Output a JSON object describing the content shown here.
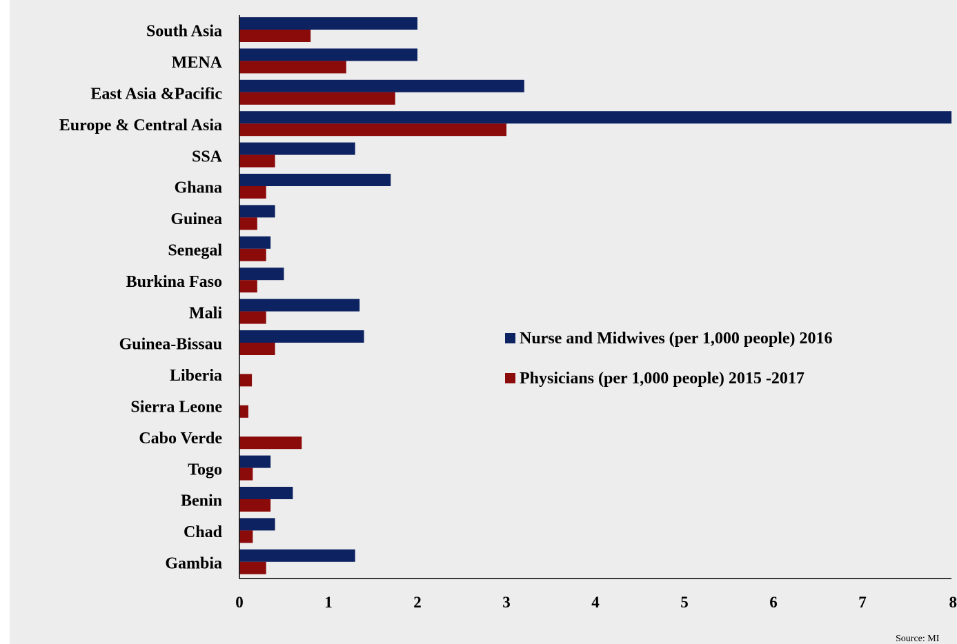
{
  "chart_data": {
    "type": "bar",
    "orientation": "horizontal",
    "categories": [
      "South Asia",
      "MENA",
      "East Asia &Pacific",
      "Europe & Central Asia",
      "SSA",
      "Ghana",
      "Guinea",
      "Senegal",
      "Burkina Faso",
      "Mali",
      "Guinea-Bissau",
      "Liberia",
      "Sierra Leone",
      "Cabo Verde",
      "Togo",
      "Benin",
      "Chad",
      "Gambia"
    ],
    "series": [
      {
        "name": "Nurse and Midwives (per 1,000 people) 2016",
        "color": "#0d2260",
        "values": [
          2.0,
          2.0,
          3.2,
          8.0,
          1.3,
          1.7,
          0.4,
          0.35,
          0.5,
          1.35,
          1.4,
          0,
          0,
          0,
          0.35,
          0.6,
          0.4,
          1.3
        ]
      },
      {
        "name": "Physicians (per 1,000 people) 2015 -2017",
        "color": "#8b0a0a",
        "values": [
          0.8,
          1.2,
          1.75,
          3.0,
          0.4,
          0.3,
          0.2,
          0.3,
          0.2,
          0.3,
          0.4,
          0.14,
          0.1,
          0.7,
          0.15,
          0.35,
          0.15,
          0.3
        ]
      }
    ],
    "xlim": [
      0,
      8
    ],
    "xticks": [
      "0",
      "1",
      "2",
      "3",
      "4",
      "5",
      "6",
      "7",
      "8"
    ],
    "title": "",
    "xlabel": "",
    "ylabel": "",
    "grid": false,
    "legend_position": "center-right"
  },
  "source_note": "Source: MI"
}
